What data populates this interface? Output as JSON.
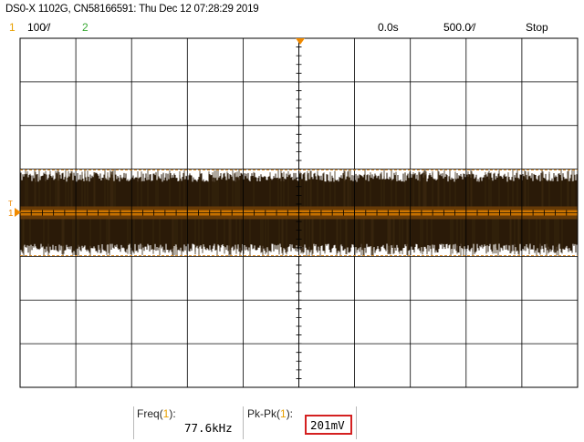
{
  "title": "DS0-X 1102G, CN58166591: Thu Dec 12 07:28:29 2019",
  "status": {
    "channel1": "1",
    "channel1_scale": "100∕/",
    "channel2": "2",
    "time_delay": "0.0s",
    "time_scale": "500.0∕/",
    "run_state": "Stop"
  },
  "markers": {
    "channel1_ground": "1",
    "trigger": "T"
  },
  "measurements": {
    "freq": {
      "label_prefix": "Freq(",
      "channel": "1",
      "label_suffix": "):",
      "value": "77.6kHz"
    },
    "pkpk": {
      "label_prefix": "Pk-Pk(",
      "channel": "1",
      "label_suffix": "):",
      "value": "201mV"
    }
  },
  "colors": {
    "trace": "#f08a00",
    "trace_dark": "#2a1a08",
    "cursor": "#e0902a",
    "grid": "#000000",
    "highlight": "#d42020"
  },
  "grid": {
    "horizontal_divisions": 10,
    "vertical_divisions": 8
  }
}
